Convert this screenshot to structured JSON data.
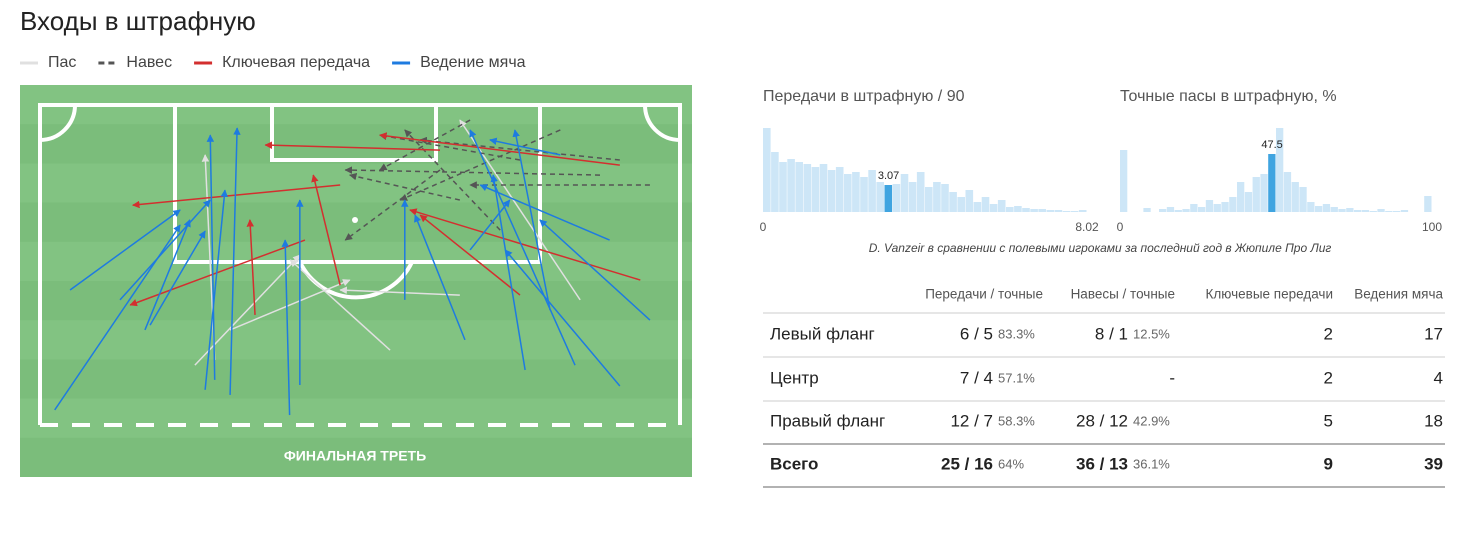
{
  "header": {
    "title": "Входы в штрафную"
  },
  "chart_data": [
    {
      "type": "pitch",
      "label": "ФИНАЛЬНАЯ ТРЕТЬ",
      "xlim": [
        0,
        100
      ],
      "ylim": [
        0,
        100
      ],
      "series": [
        {
          "name": "Пас",
          "color": "#e0e0e0",
          "dash": false,
          "arrows": [
            [
              24.2,
              81.3,
              40.6,
              46.9
            ],
            [
              54.7,
              76.6,
              39.1,
              48.4
            ],
            [
              27.3,
              79.7,
              25.8,
              15.6
            ],
            [
              84.4,
              60.9,
              65.6,
              4.7
            ],
            [
              65.6,
              59.4,
              46.9,
              57.8
            ],
            [
              29.7,
              70.3,
              48.4,
              54.7
            ]
          ]
        },
        {
          "name": "Навес",
          "color": "#555555",
          "dash": true,
          "arrows": [
            [
              95.3,
              25,
              67.2,
              25
            ],
            [
              87.5,
              21.9,
              47.7,
              20.3
            ],
            [
              81.3,
              7.8,
              56.3,
              29.7
            ],
            [
              75,
              17.2,
              53.1,
              9.4
            ],
            [
              62.5,
              20.3,
              47.7,
              42.2
            ],
            [
              67.2,
              4.7,
              53.1,
              20.3
            ],
            [
              90.6,
              17.2,
              59.4,
              10.9
            ],
            [
              71.9,
              39.1,
              57,
              7.8
            ],
            [
              65.6,
              29.7,
              48.4,
              21.9
            ]
          ]
        },
        {
          "name": "Ключевая передача",
          "color": "#d32f2f",
          "dash": false,
          "arrows": [
            [
              93.8,
              54.7,
              57.8,
              32.8
            ],
            [
              75,
              59.4,
              59.4,
              34.4
            ],
            [
              41.4,
              42.2,
              14.1,
              62.5
            ],
            [
              46.9,
              56.3,
              42.7,
              21.9
            ],
            [
              90.6,
              18.8,
              53.1,
              9.4
            ],
            [
              62.5,
              14.1,
              35.2,
              12.5
            ],
            [
              33.6,
              65.6,
              32.8,
              35.9
            ],
            [
              46.9,
              25,
              14.5,
              31.3
            ]
          ]
        },
        {
          "name": "Ведение мяча",
          "color": "#1e7be0",
          "dash": false,
          "arrows": [
            [
              2.3,
              95.3,
              21.9,
              37.5
            ],
            [
              4.7,
              57.8,
              21.9,
              32.8
            ],
            [
              25.8,
              89,
              28.9,
              26.6
            ],
            [
              29.7,
              90.6,
              30.8,
              7.2
            ],
            [
              39,
              96.9,
              38.3,
              42.2
            ],
            [
              27.3,
              85.9,
              26.6,
              9.4
            ],
            [
              17.2,
              68.8,
              25.8,
              39.4
            ],
            [
              90.6,
              87.8,
              72.7,
              45.3
            ],
            [
              83.6,
              81.3,
              67.2,
              7.8
            ],
            [
              95.3,
              67.2,
              78.1,
              35.9
            ],
            [
              66.4,
              73.4,
              58.6,
              34.4
            ],
            [
              89,
              42.2,
              68.8,
              25
            ],
            [
              81.3,
              15.6,
              70.3,
              10.9
            ],
            [
              57,
              60.9,
              57,
              29.7
            ],
            [
              40.6,
              87.5,
              40.6,
              29.7
            ],
            [
              16.4,
              70.3,
              23.4,
              35.9
            ],
            [
              75.8,
              82.8,
              70.8,
              21.9
            ],
            [
              79.7,
              64.1,
              74.2,
              7.8
            ],
            [
              67.2,
              45.3,
              73.4,
              29.7
            ],
            [
              12.5,
              60.9,
              26.6,
              29.7
            ]
          ]
        }
      ]
    },
    {
      "type": "histogram",
      "title": "Передачи в штрафную / 90",
      "xlim": [
        0,
        8.02
      ],
      "xticks": [
        0,
        8.02
      ],
      "marker": 3.07,
      "color": "#cde6f7",
      "marker_color": "#3fa4e0",
      "values": [
        84,
        60,
        50,
        53,
        50,
        48,
        45,
        48,
        42,
        45,
        38,
        40,
        35,
        42,
        30,
        27,
        28,
        38,
        30,
        40,
        25,
        30,
        28,
        20,
        15,
        22,
        10,
        15,
        8,
        12,
        5,
        6,
        4,
        3,
        3,
        2,
        2,
        1,
        1,
        2
      ]
    },
    {
      "type": "histogram",
      "title": "Точные пасы в штрафную, %",
      "xlim": [
        0,
        100
      ],
      "xticks": [
        0,
        100
      ],
      "marker": 47.5,
      "color": "#cde6f7",
      "marker_color": "#3fa4e0",
      "values": [
        62,
        0,
        0,
        4,
        0,
        3,
        5,
        2,
        3,
        8,
        5,
        12,
        8,
        10,
        15,
        30,
        20,
        35,
        38,
        58,
        84,
        40,
        30,
        25,
        10,
        6,
        8,
        5,
        3,
        4,
        2,
        2,
        1,
        3,
        1,
        1,
        2,
        0,
        0,
        16
      ]
    }
  ],
  "caption": "D. Vanzeir в сравнении с полевыми игроками за последний год в Жюпиле Про Лиг",
  "table": {
    "columns": [
      "Передачи / точные",
      "Навесы / точные",
      "Ключевые передачи",
      "Ведения мяча"
    ],
    "rows": [
      {
        "label": "Левый фланг",
        "passes": "6 / 5",
        "passes_pct": "83.3%",
        "crosses": "8 / 1",
        "crosses_pct": "12.5%",
        "key_passes": 2,
        "dribbles": 17
      },
      {
        "label": "Центр",
        "passes": "7 / 4",
        "passes_pct": "57.1%",
        "crosses": "-",
        "key_passes": 2,
        "dribbles": 4
      },
      {
        "label": "Правый фланг",
        "passes": "12 / 7",
        "passes_pct": "58.3%",
        "crosses": "28 / 12",
        "crosses_pct": "42.9%",
        "key_passes": 5,
        "dribbles": 18
      },
      {
        "label": "Всего",
        "passes": "25 / 16",
        "passes_pct": "64%",
        "crosses": "36 / 13",
        "crosses_pct": "36.1%",
        "key_passes": 9,
        "dribbles": 39
      }
    ]
  }
}
